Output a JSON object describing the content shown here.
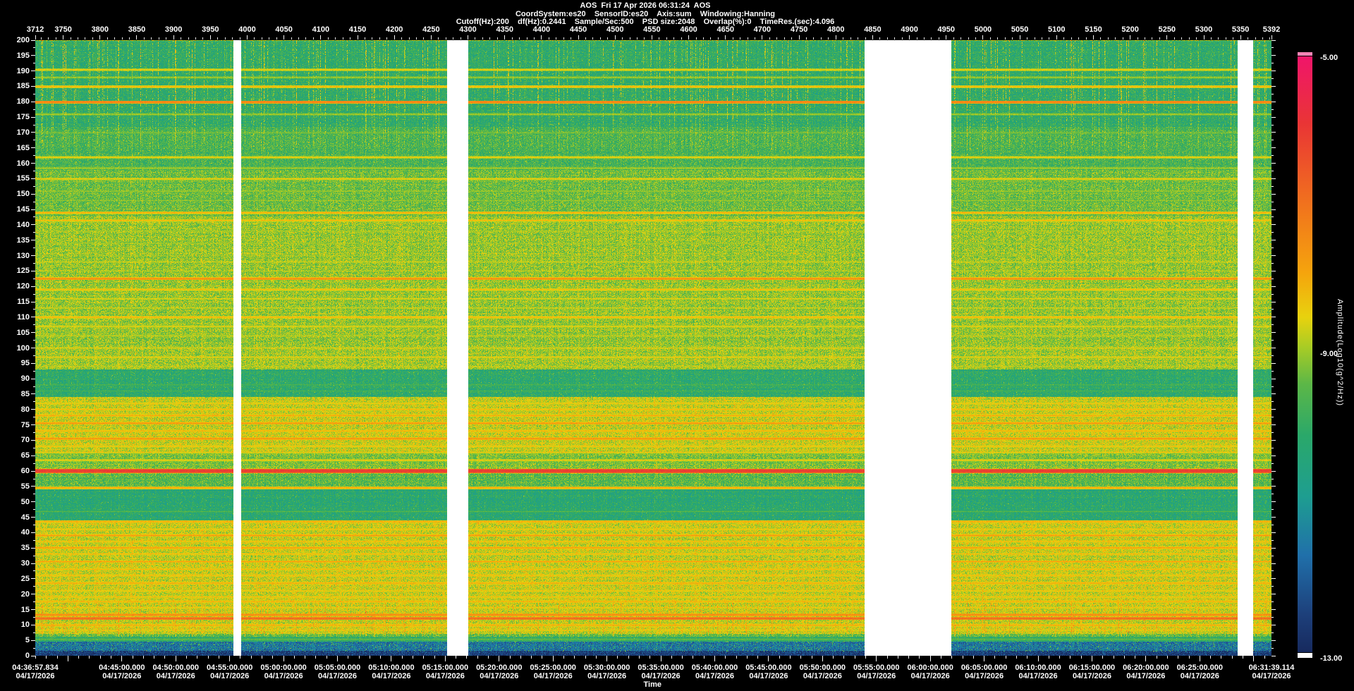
{
  "header": {
    "title": "AOS  Fri 17 Apr 2026 06:31:24  AOS",
    "params_line": [
      "CoordSystem:es20",
      "SensorID:es20",
      "Axis:sum",
      "Windowing:Hanning"
    ],
    "settings_line": [
      "Cutoff(Hz):200",
      "df(Hz):0.2441",
      "Sample/Sec:500",
      "PSD size:2048",
      "Overlap(%):0",
      "TimeRes.(sec):4.096"
    ]
  },
  "chart_data": {
    "type": "heatmap",
    "subtype": "spectrogram",
    "title": "AOS  Fri 17 Apr 2026 06:31:24  AOS",
    "x_axis_top": {
      "ticks": [
        3712,
        3750,
        3800,
        3850,
        3900,
        3950,
        4000,
        4050,
        4100,
        4150,
        4200,
        4250,
        4300,
        4350,
        4400,
        4450,
        4500,
        4550,
        4600,
        4650,
        4700,
        4750,
        4800,
        4850,
        4900,
        4950,
        5000,
        5050,
        5100,
        5150,
        5200,
        5250,
        5300,
        5350,
        5392
      ],
      "range": [
        3712,
        5392
      ],
      "minor_step": 10
    },
    "y_axis": {
      "ticks": [
        200,
        195,
        190,
        185,
        180,
        175,
        170,
        165,
        160,
        155,
        150,
        145,
        140,
        135,
        130,
        125,
        120,
        115,
        110,
        105,
        100,
        95,
        90,
        85,
        80,
        75,
        70,
        65,
        60,
        55,
        50,
        45,
        40,
        35,
        30,
        25,
        20,
        15,
        10,
        5,
        0
      ],
      "range": [
        0,
        200
      ],
      "minor_step": 2.5
    },
    "time_axis": {
      "label": "Time",
      "date": "04/17/2026",
      "start": "04:36:57.834",
      "end": "06:31:39.114",
      "tick_labels": [
        "04:36:57.834",
        "04:45:00.000",
        "04:50:00.000",
        "04:55:00.000",
        "05:00:00.000",
        "05:05:00.000",
        "05:10:00.000",
        "05:15:00.000",
        "05:20:00.000",
        "05:25:00.000",
        "05:30:00.000",
        "05:35:00.000",
        "05:40:00.000",
        "05:45:00.000",
        "05:50:00.000",
        "05:55:00.000",
        "06:00:00.000",
        "06:05:00.000",
        "06:10:00.000",
        "06:15:00.000",
        "06:20:00.000",
        "06:25:00.000",
        "06:31:39.114"
      ],
      "minor_step_sec": 60,
      "major_step_sec": 300
    },
    "colorbar": {
      "label": "Amplitude(Log10(g^2/Hz))",
      "max_label": "-5.00",
      "mid_label": "-9.00",
      "min_label": "-13.00",
      "max": -5,
      "min": -13,
      "cap_top_color": "#f585b5",
      "no_data_color": "#ffffff",
      "stops": [
        [
          -5.0,
          "#f0156a"
        ],
        [
          -5.9,
          "#e93535"
        ],
        [
          -7.0,
          "#f1731d"
        ],
        [
          -7.9,
          "#f5a40d"
        ],
        [
          -8.5,
          "#e8d20e"
        ],
        [
          -8.9,
          "#a8cc25"
        ],
        [
          -9.4,
          "#5cb747"
        ],
        [
          -10.1,
          "#2aa86a"
        ],
        [
          -10.9,
          "#1e9e90"
        ],
        [
          -11.7,
          "#2070aa"
        ],
        [
          -12.5,
          "#1d3f7a"
        ],
        [
          -13.0,
          "#172a5e"
        ]
      ]
    },
    "data_gaps": [
      {
        "start": "04:55:20",
        "end": "04:56:00"
      },
      {
        "start": "05:15:10",
        "end": "05:17:05"
      },
      {
        "start": "05:53:55",
        "end": "06:01:55"
      },
      {
        "start": "06:28:30",
        "end": "06:29:55"
      }
    ],
    "background_bands": [
      [
        0,
        1.5,
        -12.6
      ],
      [
        1.5,
        4.5,
        -11.7
      ],
      [
        4.5,
        6,
        -10.1
      ],
      [
        6,
        7,
        -9.4
      ],
      [
        7,
        44,
        -8.7
      ],
      [
        44,
        54,
        -10.25
      ],
      [
        54,
        59,
        -9.5
      ],
      [
        59,
        61,
        -8.8
      ],
      [
        61,
        66,
        -9.25
      ],
      [
        66,
        84,
        -8.7
      ],
      [
        84,
        93,
        -10.15
      ],
      [
        93,
        101,
        -8.95
      ],
      [
        101,
        143,
        -9.05
      ],
      [
        143,
        158,
        -9.35
      ],
      [
        158,
        172,
        -9.7
      ],
      [
        172,
        200,
        -10.1
      ]
    ],
    "tonal_lines": [
      [
        190.5,
        -8.3
      ],
      [
        188,
        -8.8
      ],
      [
        185,
        -8.0
      ],
      [
        180,
        -7.1
      ],
      [
        176,
        -8.8
      ],
      [
        170,
        -9.1
      ],
      [
        162,
        -8.3
      ],
      [
        158.5,
        -8.8
      ],
      [
        155,
        -8.3
      ],
      [
        151,
        -8.9
      ],
      [
        148,
        -9.0
      ],
      [
        144,
        -7.9
      ],
      [
        141.5,
        -8.1
      ],
      [
        138,
        -8.8
      ],
      [
        134,
        -8.9
      ],
      [
        130,
        -9.0
      ],
      [
        128,
        -8.7
      ],
      [
        125,
        -8.9
      ],
      [
        122.5,
        -7.4
      ],
      [
        119,
        -8.1
      ],
      [
        116,
        -8.5
      ],
      [
        113,
        -8.7
      ],
      [
        110,
        -8.0
      ],
      [
        107,
        -8.4
      ],
      [
        104,
        -8.7
      ],
      [
        100,
        -8.6
      ],
      [
        97,
        -8.4
      ],
      [
        94,
        -8.8
      ],
      [
        88,
        -9.6
      ],
      [
        86,
        -9.7
      ],
      [
        82,
        -8.3
      ],
      [
        80,
        -8.1
      ],
      [
        78,
        -7.9
      ],
      [
        75.5,
        -7.6
      ],
      [
        73,
        -8.0
      ],
      [
        70.5,
        -7.5
      ],
      [
        68,
        -8.2
      ],
      [
        66,
        -8.4
      ],
      [
        63.5,
        -8.3
      ],
      [
        60,
        -5.85
      ],
      [
        54.5,
        -7.8
      ],
      [
        46.8,
        -9.5
      ],
      [
        43.5,
        -7.9
      ],
      [
        41,
        -8.3
      ],
      [
        39,
        -7.7
      ],
      [
        37,
        -8.2
      ],
      [
        35,
        -7.7
      ],
      [
        33,
        -8.2
      ],
      [
        30.5,
        -7.8
      ],
      [
        28,
        -8.1
      ],
      [
        26,
        -8.2
      ],
      [
        23.5,
        -7.9
      ],
      [
        21,
        -8.3
      ],
      [
        19,
        -8.2
      ],
      [
        17.5,
        -8.0
      ],
      [
        15.5,
        -8.3
      ],
      [
        13.2,
        -7.3
      ],
      [
        12,
        -6.7
      ],
      [
        9.8,
        -7.9
      ],
      [
        8.2,
        -8.4
      ],
      [
        5.2,
        -9.3
      ]
    ],
    "noise_sigma": 0.55
  }
}
